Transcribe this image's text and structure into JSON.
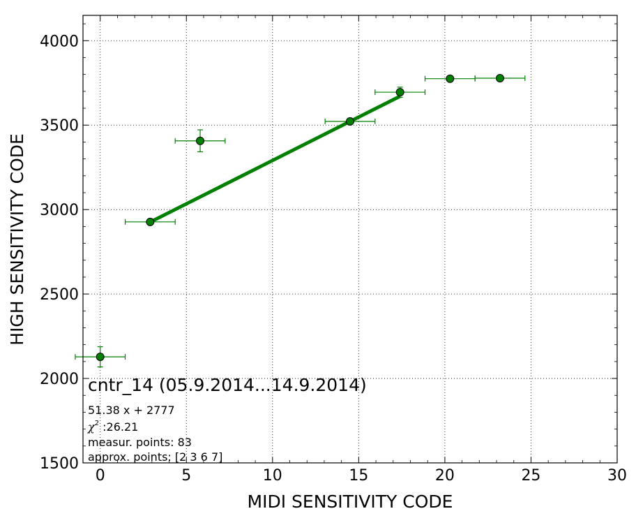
{
  "chart_data": {
    "type": "scatter",
    "xlabel": "MIDI SENSITIVITY CODE",
    "ylabel": "HIGH SENSITIVITY CODE",
    "xlim": [
      -1,
      30
    ],
    "ylim": [
      1500,
      4150
    ],
    "x_ticks": [
      0,
      5,
      10,
      15,
      20,
      25,
      30
    ],
    "y_ticks": [
      1500,
      2000,
      2500,
      3000,
      3500,
      4000
    ],
    "grid": true,
    "color": "#008000",
    "marker_fill": "#008000",
    "points": [
      {
        "x": 0.0,
        "y": 2128,
        "xerr": 1.45,
        "yerr": 60
      },
      {
        "x": 2.9,
        "y": 2927,
        "xerr": 1.45,
        "yerr": 0
      },
      {
        "x": 5.8,
        "y": 3407,
        "xerr": 1.45,
        "yerr": 65
      },
      {
        "x": 14.5,
        "y": 3522,
        "xerr": 1.45,
        "yerr": 0
      },
      {
        "x": 17.4,
        "y": 3695,
        "xerr": 1.45,
        "yerr": 30
      },
      {
        "x": 20.3,
        "y": 3775,
        "xerr": 1.45,
        "yerr": 0
      },
      {
        "x": 23.2,
        "y": 3778,
        "xerr": 1.45,
        "yerr": 0
      }
    ],
    "fit_line": {
      "slope": 51.38,
      "intercept": 2777,
      "x_start": 2.9,
      "x_end": 17.4
    },
    "annotations": {
      "title": "cntr_14 (05.9.2014...14.9.2014)",
      "equation": "51.38 x + 2777",
      "chi_symbol": "χ",
      "chi_exp": "2",
      "chi_value": " :26.21",
      "measur_points": "measur. points: 83",
      "approx_points": "approx. points: [2 3 6 7]"
    }
  }
}
